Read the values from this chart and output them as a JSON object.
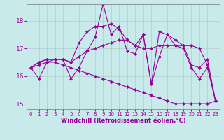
{
  "xlabel": "Windchill (Refroidissement éolien,°C)",
  "ylabel": "",
  "bg_color": "#c8eaea",
  "line_color": "#990099",
  "grid_color": "#b0cccc",
  "xlim": [
    -0.5,
    23.5
  ],
  "ylim": [
    14.8,
    18.6
  ],
  "yticks": [
    15,
    16,
    17,
    18
  ],
  "xticks": [
    0,
    1,
    2,
    3,
    4,
    5,
    6,
    7,
    8,
    9,
    10,
    11,
    12,
    13,
    14,
    15,
    16,
    17,
    18,
    19,
    20,
    21,
    22,
    23
  ],
  "series": [
    [
      16.3,
      15.9,
      16.5,
      16.6,
      16.6,
      15.9,
      16.3,
      16.9,
      17.4,
      18.6,
      17.5,
      17.8,
      16.9,
      16.8,
      17.5,
      15.7,
      16.7,
      17.5,
      17.1,
      17.0,
      16.3,
      15.9,
      16.3,
      15.1
    ],
    [
      16.3,
      16.5,
      16.6,
      16.6,
      16.6,
      16.5,
      16.7,
      16.9,
      17.0,
      17.1,
      17.2,
      17.3,
      17.3,
      17.1,
      17.0,
      17.0,
      17.1,
      17.1,
      17.1,
      17.1,
      17.1,
      17.0,
      16.4,
      15.1
    ],
    [
      16.3,
      16.5,
      16.6,
      16.6,
      16.6,
      16.5,
      17.2,
      17.6,
      17.8,
      17.8,
      17.9,
      17.7,
      17.3,
      17.1,
      17.5,
      15.7,
      17.6,
      17.5,
      17.3,
      17.1,
      16.4,
      16.3,
      16.6,
      15.1
    ],
    [
      16.3,
      16.4,
      16.5,
      16.5,
      16.4,
      16.3,
      16.2,
      16.1,
      16.0,
      15.9,
      15.8,
      15.7,
      15.6,
      15.5,
      15.4,
      15.3,
      15.2,
      15.1,
      15.0,
      15.0,
      15.0,
      15.0,
      15.0,
      15.1
    ]
  ]
}
